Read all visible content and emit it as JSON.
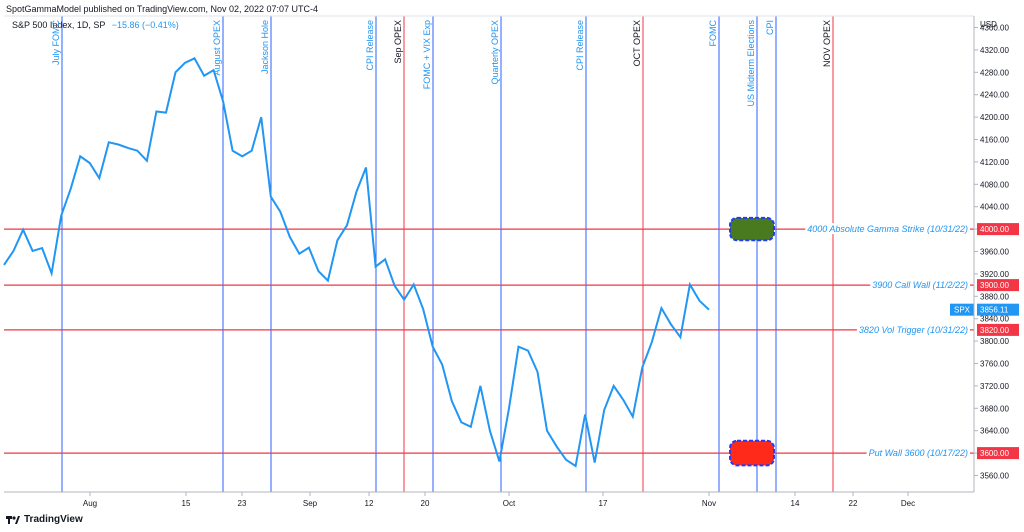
{
  "header": {
    "text": "SpotGammaModel published on TradingView.com, Nov 02, 2022 07:07 UTC-4"
  },
  "legend": {
    "symbol": "S&P 500 Index, 1D, SP",
    "change": "−15.86 (−0.41%)"
  },
  "footer": {
    "brand": "TradingView",
    "logo_icon": "tradingview-logo-icon"
  },
  "colors": {
    "price": "#2196f3",
    "level": "#f23645",
    "event_blue": "#2962ff",
    "event_red": "#f23645",
    "label_blue": "#2196f3",
    "gamma_box": "#4a7a1f",
    "putwall_box": "#ff2a1a"
  },
  "chart_data": {
    "type": "line",
    "title": "",
    "ylabel": "USD",
    "ylim": [
      3530,
      4380
    ],
    "yticks": [
      3560,
      3600,
      3640,
      3680,
      3720,
      3760,
      3800,
      3840,
      3880,
      3920,
      3960,
      4000,
      4040,
      4080,
      4120,
      4160,
      4200,
      4240,
      4280,
      4320,
      4360
    ],
    "xtick_labels": [
      "Aug",
      "15",
      "23",
      "Sep",
      "12",
      "20",
      "Oct",
      "17",
      "Nov",
      "14",
      "22",
      "Dec"
    ],
    "series": [
      {
        "name": "SPX",
        "values": [
          3936,
          3961,
          3999,
          3961,
          3966,
          3921,
          4024,
          4072,
          4130,
          4118,
          4091,
          4155,
          4151,
          4145,
          4140,
          4122,
          4210,
          4208,
          4280,
          4297,
          4305,
          4274,
          4284,
          4228,
          4140,
          4130,
          4140,
          4200,
          4058,
          4031,
          3986,
          3956,
          3967,
          3925,
          3908,
          3980,
          4007,
          4067,
          4110,
          3933,
          3946,
          3899,
          3874,
          3901,
          3857,
          3790,
          3758,
          3693,
          3655,
          3647,
          3720,
          3640,
          3585,
          3679,
          3790,
          3783,
          3745,
          3640,
          3612,
          3588,
          3577,
          3669,
          3583,
          3677,
          3720,
          3695,
          3665,
          3753,
          3798,
          3859,
          3830,
          3807,
          3901,
          3872,
          3856
        ]
      }
    ],
    "last_price": {
      "symbol": "SPX",
      "value": "3856.11"
    },
    "levels": [
      {
        "label": "4000 Absolute Gamma Strike (10/31/22)",
        "value": 4000,
        "tag": "4000.00"
      },
      {
        "label": "3900 Call Wall (11/2/22)",
        "value": 3900,
        "tag": "3900.00"
      },
      {
        "label": "3820 Vol Trigger (10/31/22)",
        "value": 3820,
        "tag": "3820.00"
      },
      {
        "label": "Put Wall 3600 (10/17/22)",
        "value": 3600,
        "tag": "3600.00"
      }
    ],
    "events": [
      {
        "label": "July FOMC",
        "color": "blue"
      },
      {
        "label": "August OPEX",
        "color": "blue"
      },
      {
        "label": "Jackson Hole",
        "color": "blue"
      },
      {
        "label": "CPI Release",
        "color": "blue"
      },
      {
        "label": "Sep OPEX",
        "color": "red"
      },
      {
        "label": "FOMC + VIX Exp",
        "color": "blue"
      },
      {
        "label": "Quarterly OPEX",
        "color": "blue"
      },
      {
        "label": "CPI Release",
        "color": "blue"
      },
      {
        "label": "OCT OPEX",
        "color": "red"
      },
      {
        "label": "FOMC",
        "color": "blue"
      },
      {
        "label": "US Midterm Elections",
        "color": "blue"
      },
      {
        "label": "CPI",
        "color": "blue"
      },
      {
        "label": "NOV OPEX",
        "color": "red"
      }
    ],
    "highlight_boxes": [
      {
        "name": "absolute-gamma-zone",
        "y_range": [
          3980,
          4020
        ],
        "color": "green"
      },
      {
        "name": "put-wall-zone",
        "y_range": [
          3578,
          3622
        ],
        "color": "red"
      }
    ],
    "grid": false
  }
}
